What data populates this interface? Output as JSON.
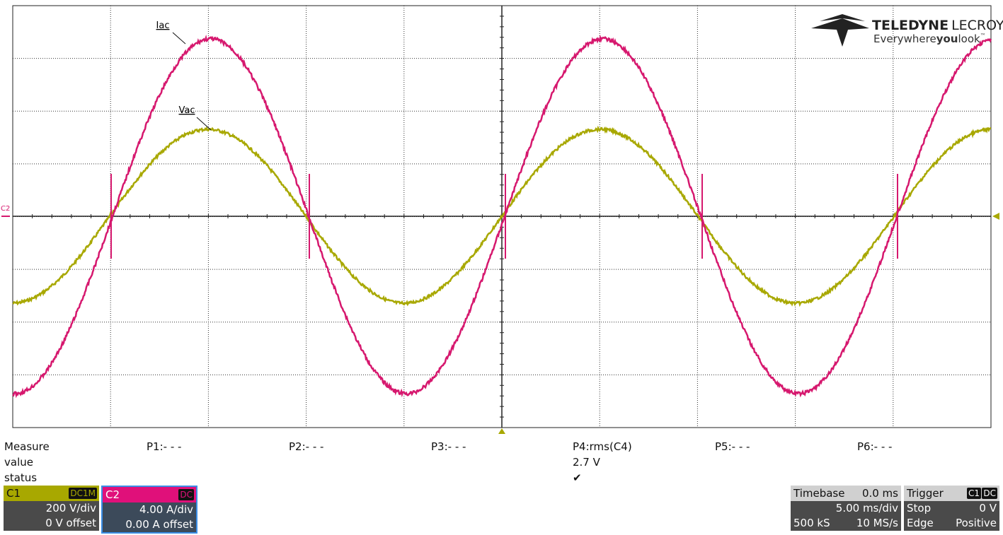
{
  "waveforms": {
    "iac_label": "Iac",
    "vac_label": "Vac",
    "channel_marker": "C2"
  },
  "logo": {
    "brand": "TELEDYNE",
    "sub": "LECROY",
    "tagline": [
      "Everywhere",
      "you",
      "look"
    ],
    "tm": "™"
  },
  "measure": {
    "labels": [
      "Measure",
      "value",
      "status"
    ],
    "params": [
      "P1:- - -",
      "P2:- - -",
      "P3:- - -",
      "P4:rms(C4)",
      "P5:- - -",
      "P6:- - -"
    ],
    "p4_value": "2.7 V",
    "p4_status": "✔"
  },
  "channels": [
    {
      "name": "C1",
      "coupling": "DC1M",
      "scale": "200 V/div",
      "offset": "0 V offset"
    },
    {
      "name": "C2",
      "coupling": "DC",
      "scale": "4.00 A/div",
      "offset": "0.00 A offset"
    }
  ],
  "timebase": {
    "title": "Timebase",
    "delay": "0.0 ms",
    "scale": "5.00 ms/div",
    "samples": "500 kS",
    "rate": "10 MS/s"
  },
  "trigger": {
    "title": "Trigger",
    "source": "C1",
    "coupling": "DC",
    "mode": "Stop",
    "level": "0 V",
    "type": "Edge",
    "slope": "Positive"
  }
}
